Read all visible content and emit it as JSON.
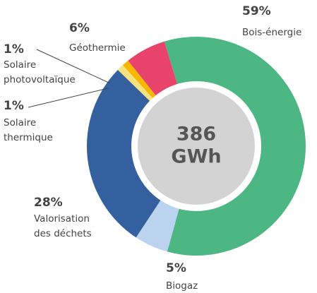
{
  "chart_data": {
    "type": "donut",
    "center_label": [
      "386",
      "GWh"
    ],
    "series": [
      {
        "name": "Bois-énergie",
        "color": "#4db784",
        "values": [
          59
        ],
        "value_labels": [
          "59%"
        ]
      },
      {
        "name": "Biogaz",
        "color": "#bcd3ef",
        "values": [
          5
        ],
        "value_labels": [
          "5%"
        ]
      },
      {
        "name": "Valorisation des déchets",
        "color": "#34609f",
        "values": [
          28
        ],
        "value_labels": [
          "28%"
        ]
      },
      {
        "name": "Solaire thermique",
        "color": "#f6e27e",
        "values": [
          1
        ],
        "value_labels": [
          "1%"
        ]
      },
      {
        "name": "Solaire photovoltaïque",
        "color": "#f6b800",
        "values": [
          1
        ],
        "value_labels": [
          "1%"
        ]
      },
      {
        "name": "Géothermie",
        "color": "#e8436a",
        "values": [
          6
        ],
        "value_labels": [
          "6%"
        ]
      }
    ]
  }
}
